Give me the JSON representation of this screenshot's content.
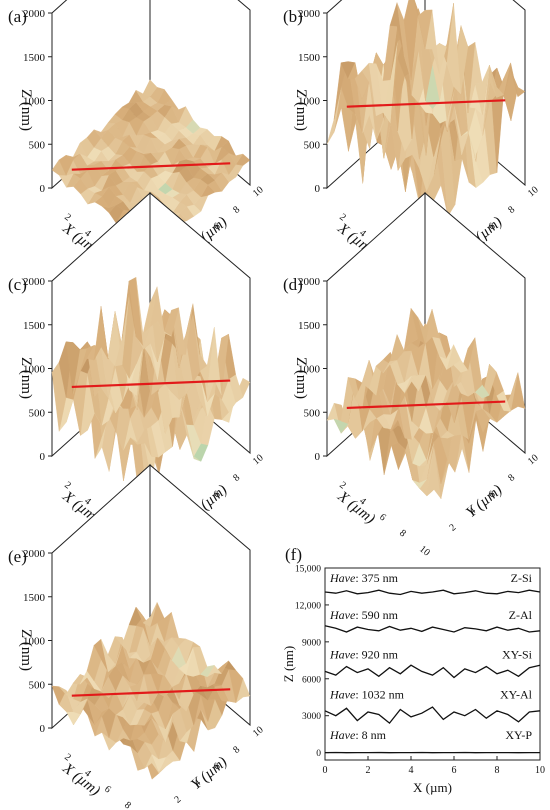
{
  "figure": {
    "panels_3d": [
      {
        "label": "(a)",
        "roughness": "flat"
      },
      {
        "label": "(b)",
        "roughness": "very-high"
      },
      {
        "label": "(c)",
        "roughness": "high"
      },
      {
        "label": "(d)",
        "roughness": "medium"
      },
      {
        "label": "(e)",
        "roughness": "low"
      }
    ],
    "axes_3d": {
      "z_ticks": [
        "0",
        "500",
        "1000",
        "1500",
        "2000"
      ],
      "x_ticks": [
        "2",
        "4",
        "6",
        "8",
        "10"
      ],
      "y_ticks": [
        "2",
        "4",
        "6",
        "8",
        "10"
      ],
      "z_label": "Z (nm)",
      "x_label": "X (µm)",
      "y_label": "Y (µm)"
    },
    "colors": {
      "surface_high": "#b88a55",
      "surface_mid": "#d7ae7a",
      "surface_low": "#f0dfb9",
      "surface_valley": "#9fcfa5",
      "profile_line": "#e21a1a"
    }
  },
  "chart_data": {
    "type": "line",
    "panel_label": "(f)",
    "xlabel": "X (µm)",
    "ylabel": "Z (nm)",
    "xlim": [
      0,
      10
    ],
    "ylim": [
      -600,
      15000
    ],
    "x_ticks": [
      "0",
      "2",
      "4",
      "6",
      "8",
      "10"
    ],
    "y_ticks": [
      "0",
      "3000",
      "6000",
      "9000",
      "12,000",
      "15,000"
    ],
    "x": [
      0,
      0.5,
      1,
      1.5,
      2,
      2.5,
      3,
      3.5,
      4,
      4.5,
      5,
      5.5,
      6,
      6.5,
      7,
      7.5,
      8,
      8.5,
      9,
      9.5,
      10
    ],
    "series": [
      {
        "name": "Z-Si",
        "h_prefix": "Have",
        "h_value": ": 375 nm",
        "values": [
          13050,
          12950,
          13150,
          12900,
          13000,
          13200,
          12950,
          12850,
          13100,
          12950,
          13050,
          13200,
          12900,
          13000,
          13150,
          12950,
          12900,
          13100,
          13000,
          13200,
          13050
        ]
      },
      {
        "name": "Z-Al",
        "h_prefix": "Have",
        "h_value": ": 590 nm",
        "values": [
          10300,
          10100,
          9800,
          10200,
          10000,
          9900,
          10250,
          9950,
          10100,
          9850,
          10200,
          10000,
          9800,
          10150,
          10050,
          9900,
          10200,
          9950,
          10100,
          9800,
          9900
        ]
      },
      {
        "name": "XY-Si",
        "h_prefix": "Have",
        "h_value": ": 920 nm",
        "values": [
          6600,
          6300,
          7000,
          6500,
          6800,
          6200,
          6900,
          6400,
          7100,
          6600,
          6300,
          6900,
          6100,
          6800,
          6500,
          7000,
          6400,
          6700,
          6200,
          6900,
          7100
        ]
      },
      {
        "name": "XY-Al",
        "h_prefix": "Have",
        "h_value": ": 1032 nm",
        "values": [
          3400,
          3000,
          3600,
          2600,
          3300,
          3100,
          2400,
          3500,
          2900,
          3200,
          3700,
          2700,
          3300,
          3000,
          3500,
          2800,
          3400,
          3100,
          2500,
          3300,
          3400
        ]
      },
      {
        "name": "XY-P",
        "h_prefix": "Have",
        "h_value": ": 8 nm",
        "values": [
          0,
          10,
          -5,
          5,
          0,
          8,
          -6,
          4,
          0,
          6,
          -4,
          3,
          0,
          7,
          -5,
          2,
          0,
          5,
          -3,
          4,
          0
        ]
      }
    ]
  }
}
